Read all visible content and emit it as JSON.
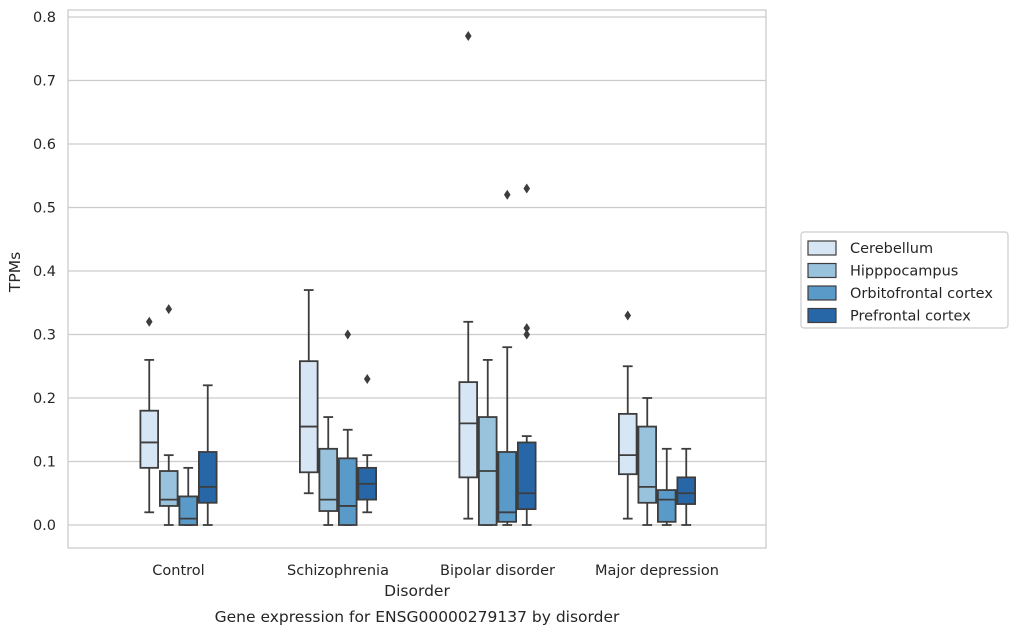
{
  "chart_data": {
    "type": "box",
    "title": "",
    "caption": "Gene expression for ENSG00000279137 by disorder",
    "xlabel": "Disorder",
    "ylabel": "TPMs",
    "ylim": [
      -0.038,
      0.812
    ],
    "yticks": [
      "0.0",
      "0.1",
      "0.2",
      "0.3",
      "0.4",
      "0.5",
      "0.6",
      "0.7",
      "0.8"
    ],
    "grid": "horizontal",
    "legend_position": "right",
    "categories": [
      "Control",
      "Schizophrenia",
      "Bipolar disorder",
      "Major depression"
    ],
    "series": [
      {
        "name": "Cerebellum",
        "color": "#d7e6f4",
        "boxes": [
          {
            "whisker_low": 0.02,
            "q1": 0.09,
            "median": 0.13,
            "q3": 0.18,
            "whisker_high": 0.26,
            "outliers": [
              0.32
            ]
          },
          {
            "whisker_low": 0.05,
            "q1": 0.083,
            "median": 0.155,
            "q3": 0.258,
            "whisker_high": 0.37,
            "outliers": []
          },
          {
            "whisker_low": 0.01,
            "q1": 0.075,
            "median": 0.16,
            "q3": 0.225,
            "whisker_high": 0.32,
            "outliers": [
              0.77
            ]
          },
          {
            "whisker_low": 0.01,
            "q1": 0.08,
            "median": 0.11,
            "q3": 0.175,
            "whisker_high": 0.25,
            "outliers": [
              0.33
            ]
          }
        ]
      },
      {
        "name": "Hipppocampus",
        "color": "#99c2dc",
        "boxes": [
          {
            "whisker_low": 0.0,
            "q1": 0.03,
            "median": 0.04,
            "q3": 0.085,
            "whisker_high": 0.11,
            "outliers": [
              0.34
            ]
          },
          {
            "whisker_low": 0.0,
            "q1": 0.022,
            "median": 0.04,
            "q3": 0.12,
            "whisker_high": 0.17,
            "outliers": []
          },
          {
            "whisker_low": 0.0,
            "q1": 0.0,
            "median": 0.085,
            "q3": 0.17,
            "whisker_high": 0.26,
            "outliers": []
          },
          {
            "whisker_low": 0.0,
            "q1": 0.035,
            "median": 0.06,
            "q3": 0.155,
            "whisker_high": 0.2,
            "outliers": []
          }
        ]
      },
      {
        "name": "Orbitofrontal cortex",
        "color": "#5a9ac8",
        "boxes": [
          {
            "whisker_low": 0.0,
            "q1": 0.0,
            "median": 0.01,
            "q3": 0.045,
            "whisker_high": 0.09,
            "outliers": []
          },
          {
            "whisker_low": 0.0,
            "q1": 0.0,
            "median": 0.03,
            "q3": 0.105,
            "whisker_high": 0.15,
            "outliers": [
              0.3
            ]
          },
          {
            "whisker_low": 0.0,
            "q1": 0.005,
            "median": 0.02,
            "q3": 0.115,
            "whisker_high": 0.28,
            "outliers": [
              0.52
            ]
          },
          {
            "whisker_low": 0.0,
            "q1": 0.005,
            "median": 0.04,
            "q3": 0.055,
            "whisker_high": 0.12,
            "outliers": []
          }
        ]
      },
      {
        "name": "Prefrontal cortex",
        "color": "#2767a8",
        "boxes": [
          {
            "whisker_low": 0.0,
            "q1": 0.035,
            "median": 0.06,
            "q3": 0.115,
            "whisker_high": 0.22,
            "outliers": []
          },
          {
            "whisker_low": 0.02,
            "q1": 0.04,
            "median": 0.065,
            "q3": 0.09,
            "whisker_high": 0.11,
            "outliers": [
              0.23
            ]
          },
          {
            "whisker_low": 0.0,
            "q1": 0.025,
            "median": 0.05,
            "q3": 0.13,
            "whisker_high": 0.14,
            "outliers": [
              0.3,
              0.31,
              0.53
            ]
          },
          {
            "whisker_low": 0.0,
            "q1": 0.033,
            "median": 0.05,
            "q3": 0.075,
            "whisker_high": 0.12,
            "outliers": []
          }
        ]
      }
    ]
  }
}
